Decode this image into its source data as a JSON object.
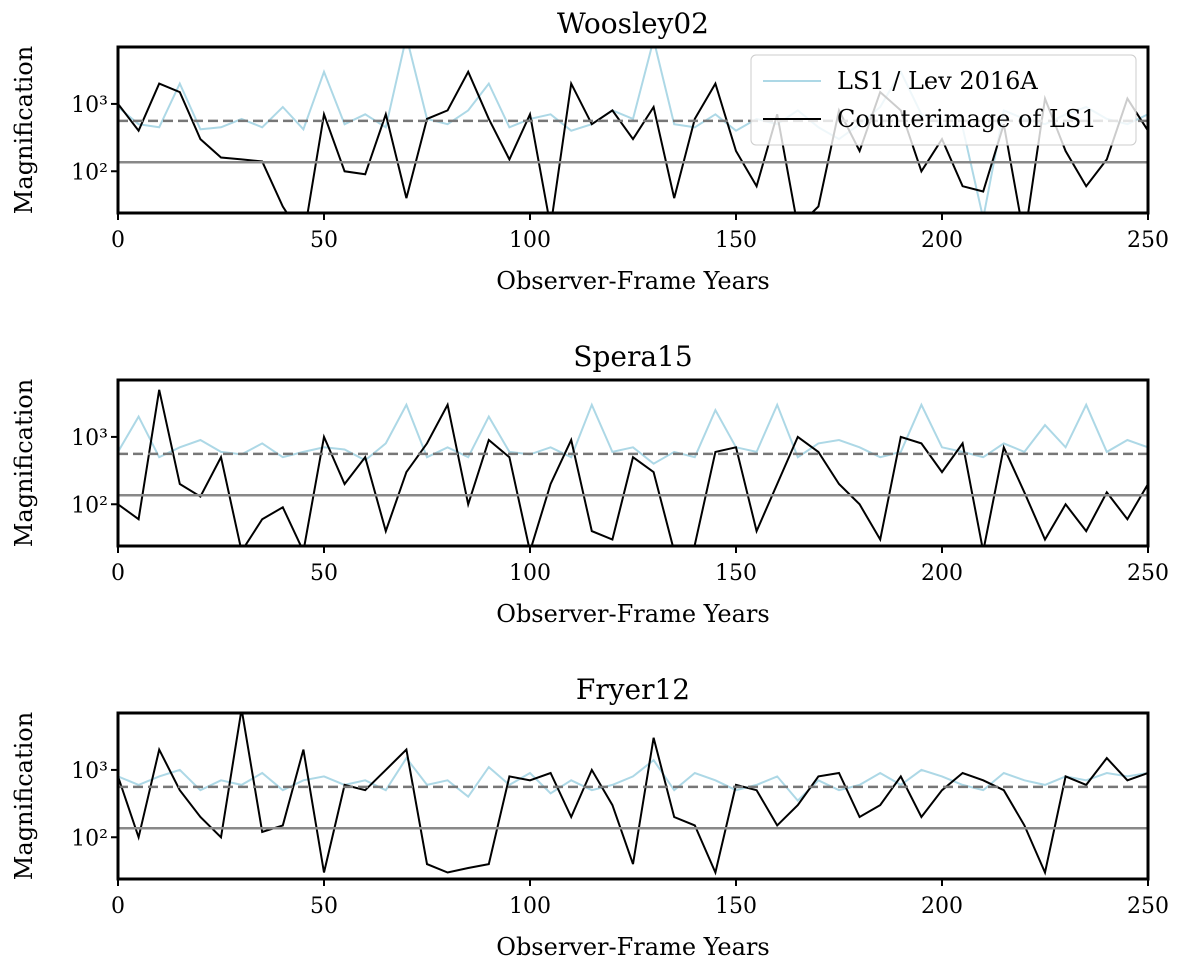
{
  "chart_data": [
    {
      "type": "line",
      "title": "Woosley02",
      "xlabel": "Observer-Frame Years",
      "ylabel": "Magnification",
      "xlim": [
        0,
        250
      ],
      "xticks": [
        0,
        50,
        100,
        150,
        200,
        250
      ],
      "ylim": [
        24,
        7000
      ],
      "yticks": [
        {
          "value": 100,
          "label": "10²"
        },
        {
          "value": 1000,
          "label": "10³"
        }
      ],
      "log_y": true,
      "legend": "upper right",
      "hlines": [
        {
          "value": 560,
          "color": "#777777",
          "style": "dashed"
        },
        {
          "value": 136,
          "color": "#888888",
          "style": "solid"
        }
      ],
      "x": [
        0,
        5,
        10,
        15,
        20,
        25,
        30,
        35,
        40,
        45,
        50,
        55,
        60,
        65,
        70,
        75,
        80,
        85,
        90,
        95,
        100,
        105,
        110,
        115,
        120,
        125,
        130,
        135,
        140,
        145,
        150,
        155,
        160,
        165,
        170,
        175,
        180,
        185,
        190,
        195,
        200,
        205,
        210,
        215,
        220,
        225,
        230,
        235,
        240,
        245,
        250
      ],
      "series": [
        {
          "name": "LS1 / Lev 2016A",
          "color": "#add8e6",
          "values": [
            900,
            500,
            450,
            2000,
            420,
            450,
            600,
            450,
            900,
            420,
            3000,
            500,
            700,
            450,
            10000,
            600,
            500,
            800,
            2000,
            450,
            600,
            700,
            400,
            500,
            800,
            600,
            9000,
            500,
            450,
            700,
            400,
            600,
            500,
            800,
            450,
            300,
            500,
            900,
            3000,
            700,
            500,
            450,
            20,
            800,
            600,
            500,
            700,
            900,
            600,
            500,
            700
          ]
        },
        {
          "name": "Counterimage of LS1",
          "color": "#000000",
          "values": [
            1000,
            400,
            2000,
            1500,
            300,
            160,
            150,
            140,
            30,
            10,
            700,
            100,
            90,
            700,
            40,
            600,
            800,
            3000,
            600,
            150,
            700,
            15,
            2000,
            500,
            800,
            300,
            900,
            40,
            600,
            2000,
            200,
            60,
            700,
            15,
            30,
            800,
            200,
            1500,
            800,
            100,
            300,
            60,
            50,
            500,
            10,
            1200,
            200,
            60,
            150,
            1200,
            400
          ]
        }
      ]
    },
    {
      "type": "line",
      "title": "Spera15",
      "xlabel": "Observer-Frame Years",
      "ylabel": "Magnification",
      "xlim": [
        0,
        250
      ],
      "xticks": [
        0,
        50,
        100,
        150,
        200,
        250
      ],
      "ylim": [
        24,
        7000
      ],
      "yticks": [
        {
          "value": 100,
          "label": "10²"
        },
        {
          "value": 1000,
          "label": "10³"
        }
      ],
      "log_y": true,
      "hlines": [
        {
          "value": 560,
          "color": "#777777",
          "style": "dashed"
        },
        {
          "value": 136,
          "color": "#888888",
          "style": "solid"
        }
      ],
      "x": [
        0,
        5,
        10,
        15,
        20,
        25,
        30,
        35,
        40,
        45,
        50,
        55,
        60,
        65,
        70,
        75,
        80,
        85,
        90,
        95,
        100,
        105,
        110,
        115,
        120,
        125,
        130,
        135,
        140,
        145,
        150,
        155,
        160,
        165,
        170,
        175,
        180,
        185,
        190,
        195,
        200,
        205,
        210,
        215,
        220,
        225,
        230,
        235,
        240,
        245,
        250
      ],
      "series": [
        {
          "color": "#add8e6",
          "values": [
            600,
            2000,
            500,
            700,
            900,
            600,
            550,
            800,
            500,
            600,
            700,
            650,
            450,
            800,
            3000,
            500,
            700,
            500,
            2000,
            600,
            550,
            700,
            500,
            3000,
            600,
            700,
            400,
            600,
            500,
            2500,
            700,
            600,
            3000,
            500,
            800,
            900,
            700,
            500,
            600,
            3000,
            700,
            600,
            500,
            800,
            600,
            1500,
            700,
            3000,
            600,
            900,
            700
          ]
        },
        {
          "color": "#000000",
          "values": [
            100,
            60,
            5000,
            200,
            130,
            500,
            20,
            60,
            90,
            20,
            1000,
            200,
            500,
            40,
            300,
            800,
            3000,
            100,
            900,
            500,
            20,
            200,
            900,
            40,
            30,
            500,
            300,
            20,
            25,
            600,
            700,
            40,
            200,
            1000,
            600,
            200,
            100,
            30,
            1000,
            800,
            300,
            800,
            20,
            700,
            150,
            30,
            100,
            40,
            150,
            60,
            200
          ]
        }
      ]
    },
    {
      "type": "line",
      "title": "Fryer12",
      "xlabel": "Observer-Frame Years",
      "ylabel": "Magnification",
      "xlim": [
        0,
        250
      ],
      "xticks": [
        0,
        50,
        100,
        150,
        200,
        250
      ],
      "ylim": [
        24,
        7000
      ],
      "yticks": [
        {
          "value": 100,
          "label": "10²"
        },
        {
          "value": 1000,
          "label": "10³"
        }
      ],
      "log_y": true,
      "hlines": [
        {
          "value": 560,
          "color": "#777777",
          "style": "dashed"
        },
        {
          "value": 136,
          "color": "#888888",
          "style": "solid"
        }
      ],
      "x": [
        0,
        5,
        10,
        15,
        20,
        25,
        30,
        35,
        40,
        45,
        50,
        55,
        60,
        65,
        70,
        75,
        80,
        85,
        90,
        95,
        100,
        105,
        110,
        115,
        120,
        125,
        130,
        135,
        140,
        145,
        150,
        155,
        160,
        165,
        170,
        175,
        180,
        185,
        190,
        195,
        200,
        205,
        210,
        215,
        220,
        225,
        230,
        235,
        240,
        245,
        250
      ],
      "series": [
        {
          "color": "#add8e6",
          "values": [
            800,
            600,
            800,
            1000,
            500,
            700,
            600,
            900,
            500,
            700,
            800,
            600,
            700,
            500,
            1500,
            600,
            700,
            400,
            1100,
            600,
            900,
            450,
            700,
            500,
            600,
            800,
            1400,
            500,
            900,
            700,
            500,
            600,
            800,
            350,
            700,
            500,
            600,
            900,
            600,
            1000,
            800,
            600,
            500,
            900,
            700,
            600,
            800,
            700,
            900,
            800,
            900
          ]
        },
        {
          "color": "#000000",
          "values": [
            800,
            100,
            2000,
            500,
            200,
            100,
            8000,
            120,
            150,
            2000,
            30,
            600,
            500,
            1000,
            2000,
            40,
            30,
            35,
            40,
            800,
            700,
            900,
            200,
            1000,
            300,
            40,
            3000,
            200,
            150,
            30,
            600,
            500,
            150,
            300,
            800,
            900,
            200,
            300,
            800,
            200,
            500,
            900,
            700,
            500,
            150,
            30,
            800,
            600,
            1500,
            700,
            900
          ]
        }
      ]
    }
  ]
}
